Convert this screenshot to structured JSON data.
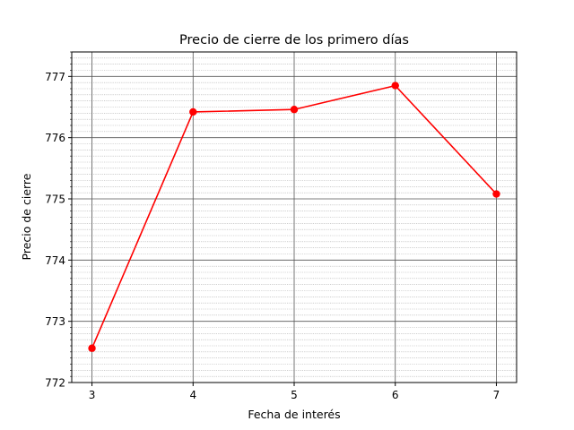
{
  "chart_data": {
    "type": "line",
    "title": "Precio de cierre de los primero días",
    "xlabel": "Fecha de interés",
    "ylabel": "Precio de cierre",
    "x": [
      3,
      4,
      5,
      6,
      7
    ],
    "xticks": [
      "3",
      "4",
      "5",
      "6",
      "7"
    ],
    "yticks": [
      "772",
      "773",
      "774",
      "775",
      "776",
      "777"
    ],
    "xlim": [
      2.8,
      7.2
    ],
    "ylim": [
      772,
      777.4
    ],
    "series": [
      {
        "values": [
          772.56,
          776.42,
          776.46,
          776.85,
          775.08
        ],
        "color": "#ff0000"
      }
    ],
    "grid": {
      "major": true,
      "minor": true
    },
    "legend": "none"
  }
}
